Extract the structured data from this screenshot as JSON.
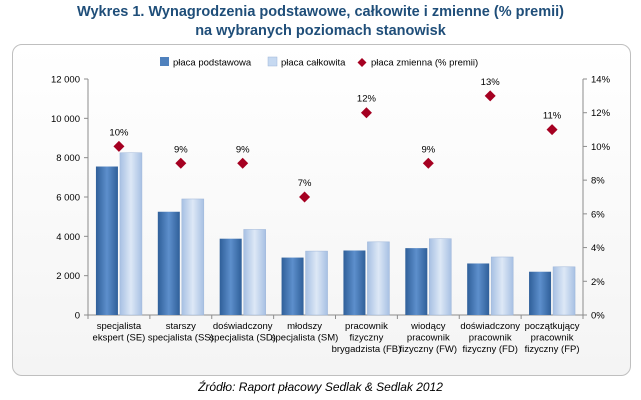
{
  "title_line1": "Wykres 1. Wynagrodzenia podstawowe, całkowite i zmienne (% premii)",
  "title_line2": "na wybranych poziomach stanowisk",
  "source": "Źródło: Raport płacowy Sedlak & Sedlak 2012",
  "colors": {
    "base": "#4f81bd",
    "total": "#c6d9f1",
    "variable": "#a50021",
    "title": "#1f4e79"
  },
  "chart_data": {
    "type": "bar",
    "categories": [
      [
        "specjalista",
        "ekspert (SE)"
      ],
      [
        "starszy",
        "specjalista (SS)"
      ],
      [
        "doświadczony",
        "specjalista (SD)"
      ],
      [
        "młodszy",
        "specjalista (SM)"
      ],
      [
        "pracownik",
        "fizyczny",
        "brygadzista (FB)"
      ],
      [
        "wiodący",
        "pracownik",
        "fizyczny (FW)"
      ],
      [
        "doświadczony",
        "pracownik",
        "fizyczny (FD)"
      ],
      [
        "początkujący",
        "pracownik",
        "fizyczny (FP)"
      ]
    ],
    "series": [
      {
        "name": "płaca podstawowa",
        "axis": "left",
        "kind": "bar",
        "values": [
          7550,
          5250,
          3880,
          2920,
          3280,
          3400,
          2620,
          2200
        ]
      },
      {
        "name": "płaca całkowita",
        "axis": "left",
        "kind": "bar",
        "values": [
          8250,
          5900,
          4350,
          3250,
          3720,
          3880,
          2950,
          2450
        ]
      },
      {
        "name": "płaca zmienna (% premii)",
        "axis": "right",
        "kind": "marker",
        "values": [
          10,
          9,
          9,
          7,
          12,
          9,
          13,
          11
        ],
        "labels": [
          "10%",
          "9%",
          "9%",
          "7%",
          "12%",
          "9%",
          "13%",
          "11%"
        ]
      }
    ],
    "y_left": {
      "min": 0,
      "max": 12000,
      "step": 2000,
      "ticks": [
        "0",
        "2 000",
        "4 000",
        "6 000",
        "8 000",
        "10 000",
        "12 000"
      ]
    },
    "y_right": {
      "min": 0,
      "max": 14,
      "step": 2,
      "ticks": [
        "0%",
        "2%",
        "4%",
        "6%",
        "8%",
        "10%",
        "12%",
        "14%"
      ]
    },
    "legend_position": "top",
    "grid": false
  }
}
